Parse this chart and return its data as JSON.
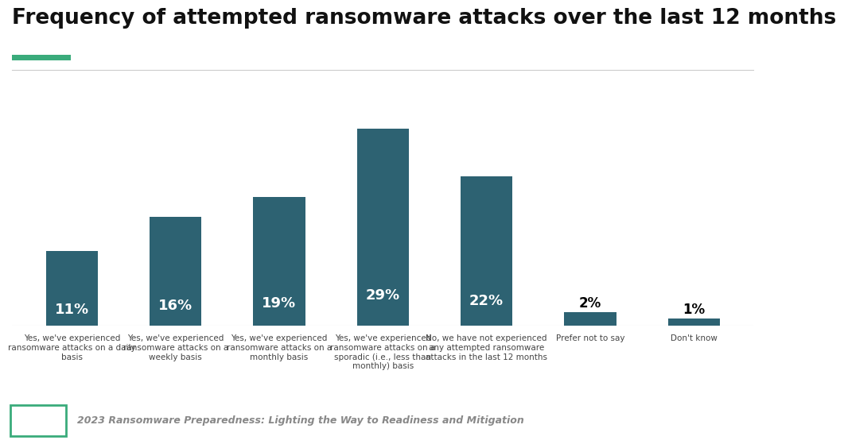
{
  "title": "Frequency of attempted ransomware attacks over the last 12 months",
  "categories": [
    "Yes, we've experienced\nransomware attacks on a daily\nbasis",
    "Yes, we've experienced\nransomware attacks on a\nweekly basis",
    "Yes, we've experienced\nransomware attacks on a\nmonthly basis",
    "Yes, we've experienced\nransomware attacks on a\nsporadic (i.e., less than\nmonthly) basis",
    "No, we have not experienced\nany attempted ransomware\nattacks in the last 12 months",
    "Prefer not to say",
    "Don't know"
  ],
  "values": [
    11,
    16,
    19,
    29,
    22,
    2,
    1
  ],
  "labels": [
    "11%",
    "16%",
    "19%",
    "29%",
    "22%",
    "2%",
    "1%"
  ],
  "bar_color": "#2d6272",
  "background_color": "#ffffff",
  "title_fontsize": 19,
  "label_fontsize_inside": 13,
  "label_fontsize_outside": 12,
  "tick_fontsize": 7.5,
  "footer_text": "2023 Ransomware Preparedness: Lighting the Way to Readiness and Mitigation",
  "accent_color": "#3aab7b",
  "grid_color": "#cccccc",
  "ylim": [
    0,
    34
  ],
  "small_threshold": 3
}
